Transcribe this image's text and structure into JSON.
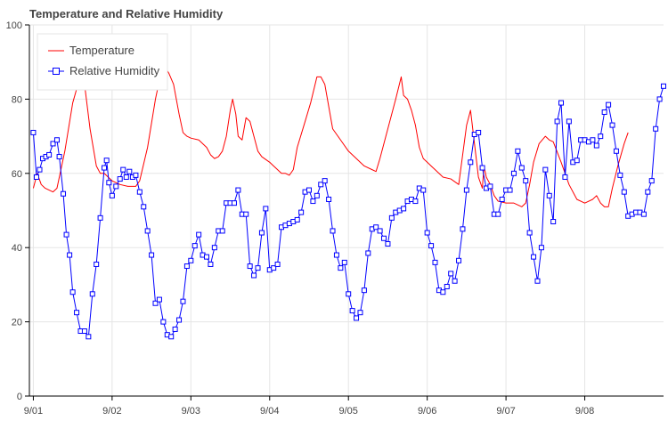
{
  "chart_data": {
    "type": "line",
    "title": "Temperature and Relative Humidity",
    "xlabel": "",
    "ylabel": "",
    "ylim": [
      0,
      100
    ],
    "xlim": [
      -0.05,
      8.0
    ],
    "yticks": [
      0,
      20,
      40,
      60,
      80,
      100
    ],
    "xticks": [
      {
        "pos": 0,
        "label": "9/01"
      },
      {
        "pos": 1,
        "label": "9/02"
      },
      {
        "pos": 2,
        "label": "9/03"
      },
      {
        "pos": 3,
        "label": "9/04"
      },
      {
        "pos": 4,
        "label": "9/05"
      },
      {
        "pos": 5,
        "label": "9/06"
      },
      {
        "pos": 6,
        "label": "9/07"
      },
      {
        "pos": 7,
        "label": "9/08"
      }
    ],
    "grid": true,
    "legend": "top-left",
    "series": [
      {
        "name": "Temperature",
        "color": "#ff0000",
        "marker": "none",
        "points": [
          [
            0.0,
            56
          ],
          [
            0.05,
            60
          ],
          [
            0.1,
            57
          ],
          [
            0.15,
            56
          ],
          [
            0.2,
            55.5
          ],
          [
            0.25,
            55
          ],
          [
            0.3,
            56
          ],
          [
            0.4,
            66
          ],
          [
            0.5,
            79
          ],
          [
            0.58,
            85
          ],
          [
            0.65,
            84
          ],
          [
            0.72,
            72
          ],
          [
            0.8,
            62
          ],
          [
            0.85,
            60
          ],
          [
            0.9,
            60
          ],
          [
            0.95,
            59
          ],
          [
            1.0,
            58
          ],
          [
            1.1,
            57
          ],
          [
            1.2,
            56.5
          ],
          [
            1.3,
            56.5
          ],
          [
            1.35,
            58
          ],
          [
            1.45,
            67
          ],
          [
            1.55,
            80
          ],
          [
            1.6,
            85
          ],
          [
            1.65,
            89.5
          ],
          [
            1.72,
            87
          ],
          [
            1.78,
            84
          ],
          [
            1.85,
            76
          ],
          [
            1.9,
            71
          ],
          [
            1.95,
            70
          ],
          [
            2.0,
            69.5
          ],
          [
            2.1,
            69
          ],
          [
            2.2,
            67
          ],
          [
            2.25,
            65
          ],
          [
            2.3,
            64
          ],
          [
            2.35,
            64.5
          ],
          [
            2.4,
            66
          ],
          [
            2.45,
            70
          ],
          [
            2.5,
            77
          ],
          [
            2.53,
            80
          ],
          [
            2.57,
            76
          ],
          [
            2.6,
            70
          ],
          [
            2.65,
            69
          ],
          [
            2.7,
            75
          ],
          [
            2.75,
            74
          ],
          [
            2.8,
            70
          ],
          [
            2.85,
            66
          ],
          [
            2.9,
            64.5
          ],
          [
            3.0,
            63
          ],
          [
            3.05,
            62
          ],
          [
            3.1,
            61
          ],
          [
            3.15,
            60
          ],
          [
            3.2,
            60
          ],
          [
            3.25,
            59.5
          ],
          [
            3.3,
            61
          ],
          [
            3.35,
            67
          ],
          [
            3.45,
            74
          ],
          [
            3.52,
            79
          ],
          [
            3.6,
            86
          ],
          [
            3.65,
            86
          ],
          [
            3.7,
            84
          ],
          [
            3.75,
            78
          ],
          [
            3.8,
            72
          ],
          [
            3.9,
            69
          ],
          [
            4.0,
            66
          ],
          [
            4.1,
            64
          ],
          [
            4.2,
            62
          ],
          [
            4.3,
            61
          ],
          [
            4.35,
            60.5
          ],
          [
            4.4,
            64
          ],
          [
            4.5,
            72
          ],
          [
            4.6,
            80
          ],
          [
            4.67,
            86
          ],
          [
            4.7,
            81
          ],
          [
            4.75,
            80
          ],
          [
            4.8,
            77
          ],
          [
            4.85,
            73
          ],
          [
            4.9,
            67
          ],
          [
            4.95,
            64
          ],
          [
            5.0,
            63
          ],
          [
            5.05,
            62
          ],
          [
            5.1,
            61
          ],
          [
            5.2,
            59
          ],
          [
            5.3,
            58.5
          ],
          [
            5.4,
            57
          ],
          [
            5.45,
            65
          ],
          [
            5.5,
            73
          ],
          [
            5.55,
            77
          ],
          [
            5.6,
            68
          ],
          [
            5.65,
            59
          ],
          [
            5.7,
            56
          ],
          [
            5.72,
            62
          ],
          [
            5.75,
            59
          ],
          [
            5.8,
            57
          ],
          [
            5.85,
            54
          ],
          [
            5.9,
            52.5
          ],
          [
            6.0,
            52
          ],
          [
            6.1,
            52
          ],
          [
            6.2,
            51
          ],
          [
            6.25,
            52
          ],
          [
            6.3,
            57
          ],
          [
            6.35,
            63
          ],
          [
            6.42,
            68
          ],
          [
            6.5,
            70
          ],
          [
            6.55,
            69
          ],
          [
            6.6,
            68.5
          ],
          [
            6.7,
            63
          ],
          [
            6.8,
            57
          ],
          [
            6.9,
            53
          ],
          [
            7.0,
            52
          ],
          [
            7.1,
            53
          ],
          [
            7.15,
            54
          ],
          [
            7.2,
            52
          ],
          [
            7.25,
            51
          ],
          [
            7.3,
            51
          ],
          [
            7.35,
            56
          ],
          [
            7.42,
            62
          ],
          [
            7.5,
            68
          ],
          [
            7.55,
            71
          ]
        ]
      },
      {
        "name": "Relative Humidity",
        "color": "#0000ff",
        "marker": "square",
        "points": [
          [
            0.0,
            71
          ],
          [
            0.04,
            59
          ],
          [
            0.08,
            61
          ],
          [
            0.12,
            64
          ],
          [
            0.16,
            64.5
          ],
          [
            0.2,
            65
          ],
          [
            0.25,
            68
          ],
          [
            0.3,
            69
          ],
          [
            0.33,
            64.5
          ],
          [
            0.38,
            54.5
          ],
          [
            0.42,
            43.5
          ],
          [
            0.46,
            38
          ],
          [
            0.5,
            28
          ],
          [
            0.55,
            22.5
          ],
          [
            0.6,
            17.5
          ],
          [
            0.65,
            17.5
          ],
          [
            0.7,
            16
          ],
          [
            0.75,
            27.5
          ],
          [
            0.8,
            35.5
          ],
          [
            0.85,
            48
          ],
          [
            0.9,
            61.5
          ],
          [
            0.93,
            63.5
          ],
          [
            0.96,
            57.5
          ],
          [
            1.0,
            54
          ],
          [
            1.05,
            56.5
          ],
          [
            1.1,
            58.5
          ],
          [
            1.14,
            61
          ],
          [
            1.18,
            59
          ],
          [
            1.22,
            60.5
          ],
          [
            1.26,
            59
          ],
          [
            1.3,
            59.5
          ],
          [
            1.35,
            55
          ],
          [
            1.4,
            51
          ],
          [
            1.45,
            44.5
          ],
          [
            1.5,
            38
          ],
          [
            1.55,
            25
          ],
          [
            1.6,
            26
          ],
          [
            1.65,
            20
          ],
          [
            1.7,
            16.5
          ],
          [
            1.75,
            16
          ],
          [
            1.8,
            18
          ],
          [
            1.85,
            20.5
          ],
          [
            1.9,
            25.5
          ],
          [
            1.95,
            35
          ],
          [
            2.0,
            36.5
          ],
          [
            2.05,
            40.5
          ],
          [
            2.1,
            43.5
          ],
          [
            2.15,
            38
          ],
          [
            2.2,
            37.5
          ],
          [
            2.25,
            35.5
          ],
          [
            2.3,
            40
          ],
          [
            2.35,
            44.5
          ],
          [
            2.4,
            44.5
          ],
          [
            2.45,
            52
          ],
          [
            2.5,
            52
          ],
          [
            2.55,
            52
          ],
          [
            2.6,
            55.5
          ],
          [
            2.65,
            49
          ],
          [
            2.7,
            49
          ],
          [
            2.75,
            35
          ],
          [
            2.8,
            32.5
          ],
          [
            2.85,
            34.5
          ],
          [
            2.9,
            44
          ],
          [
            2.95,
            50.5
          ],
          [
            3.0,
            34
          ],
          [
            3.05,
            34.5
          ],
          [
            3.1,
            35.5
          ],
          [
            3.15,
            45.5
          ],
          [
            3.2,
            46
          ],
          [
            3.25,
            46.5
          ],
          [
            3.3,
            47
          ],
          [
            3.35,
            47.5
          ],
          [
            3.4,
            49.5
          ],
          [
            3.45,
            55
          ],
          [
            3.5,
            55.5
          ],
          [
            3.55,
            52.5
          ],
          [
            3.6,
            54
          ],
          [
            3.65,
            57
          ],
          [
            3.7,
            58
          ],
          [
            3.75,
            53
          ],
          [
            3.8,
            44.5
          ],
          [
            3.85,
            38
          ],
          [
            3.9,
            34.5
          ],
          [
            3.95,
            36
          ],
          [
            4.0,
            27.5
          ],
          [
            4.05,
            23
          ],
          [
            4.1,
            21
          ],
          [
            4.15,
            22.5
          ],
          [
            4.2,
            28.5
          ],
          [
            4.25,
            38.5
          ],
          [
            4.3,
            45
          ],
          [
            4.35,
            45.5
          ],
          [
            4.4,
            44.5
          ],
          [
            4.45,
            42.5
          ],
          [
            4.5,
            41
          ],
          [
            4.55,
            48
          ],
          [
            4.6,
            49.5
          ],
          [
            4.65,
            50
          ],
          [
            4.7,
            50.5
          ],
          [
            4.75,
            52.5
          ],
          [
            4.8,
            53
          ],
          [
            4.85,
            52.5
          ],
          [
            4.9,
            56
          ],
          [
            4.95,
            55.5
          ],
          [
            5.0,
            44
          ],
          [
            5.05,
            40.5
          ],
          [
            5.1,
            36
          ],
          [
            5.15,
            28.5
          ],
          [
            5.2,
            28
          ],
          [
            5.25,
            29.5
          ],
          [
            5.3,
            33
          ],
          [
            5.35,
            31
          ],
          [
            5.4,
            36.5
          ],
          [
            5.45,
            45
          ],
          [
            5.5,
            55.5
          ],
          [
            5.55,
            63
          ],
          [
            5.6,
            70.5
          ],
          [
            5.65,
            71
          ],
          [
            5.7,
            61.5
          ],
          [
            5.75,
            56
          ],
          [
            5.8,
            56.5
          ],
          [
            5.85,
            49
          ],
          [
            5.9,
            49
          ],
          [
            5.95,
            53
          ],
          [
            6.0,
            55.5
          ],
          [
            6.05,
            55.5
          ],
          [
            6.1,
            60
          ],
          [
            6.15,
            66
          ],
          [
            6.2,
            61.5
          ],
          [
            6.25,
            58
          ],
          [
            6.3,
            44
          ],
          [
            6.35,
            37.5
          ],
          [
            6.4,
            31
          ],
          [
            6.45,
            40
          ],
          [
            6.5,
            61
          ],
          [
            6.55,
            54
          ],
          [
            6.6,
            47
          ],
          [
            6.65,
            74
          ],
          [
            6.7,
            79
          ],
          [
            6.75,
            59
          ],
          [
            6.8,
            74
          ],
          [
            6.85,
            63
          ],
          [
            6.9,
            63.5
          ],
          [
            6.95,
            69
          ],
          [
            7.0,
            69
          ],
          [
            7.05,
            68.5
          ],
          [
            7.1,
            69
          ],
          [
            7.15,
            67.5
          ],
          [
            7.2,
            70
          ],
          [
            7.25,
            76.5
          ],
          [
            7.3,
            78.5
          ],
          [
            7.35,
            73
          ],
          [
            7.4,
            66
          ],
          [
            7.45,
            59.5
          ],
          [
            7.5,
            55
          ],
          [
            7.55,
            48.5
          ],
          [
            7.6,
            49
          ],
          [
            7.65,
            49.5
          ],
          [
            7.7,
            49.5
          ],
          [
            7.75,
            49
          ],
          [
            7.8,
            55
          ],
          [
            7.85,
            58
          ],
          [
            7.9,
            72
          ],
          [
            7.95,
            80
          ],
          [
            8.0,
            83.5
          ]
        ]
      }
    ]
  }
}
